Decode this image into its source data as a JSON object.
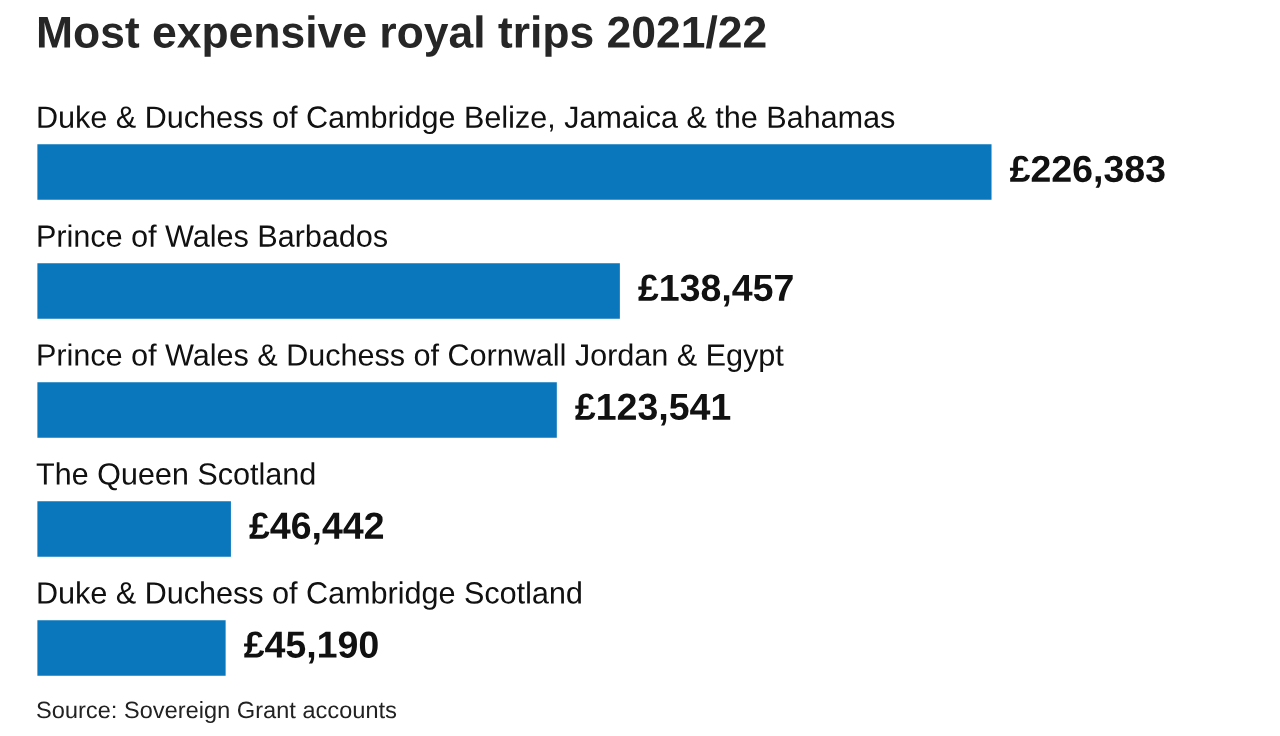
{
  "chart_data": {
    "type": "bar",
    "orientation": "horizontal",
    "title": "Most expensive royal trips 2021/22",
    "categories": [
      "Duke & Duchess of Cambridge Belize, Jamaica & the Bahamas",
      "Prince of Wales Barbados",
      "Prince of Wales & Duchess of Cornwall Jordan & Egypt",
      "The Queen Scotland",
      "Duke & Duchess of Cambridge Scotland"
    ],
    "values": [
      226383,
      138457,
      123541,
      46442,
      45190
    ],
    "value_labels": [
      "£226,383",
      "£138,457",
      "£123,541",
      "£46,442",
      "£45,190"
    ],
    "color": "#0a77bd",
    "annotations": [
      "Source: Sovereign Grant accounts"
    ]
  }
}
